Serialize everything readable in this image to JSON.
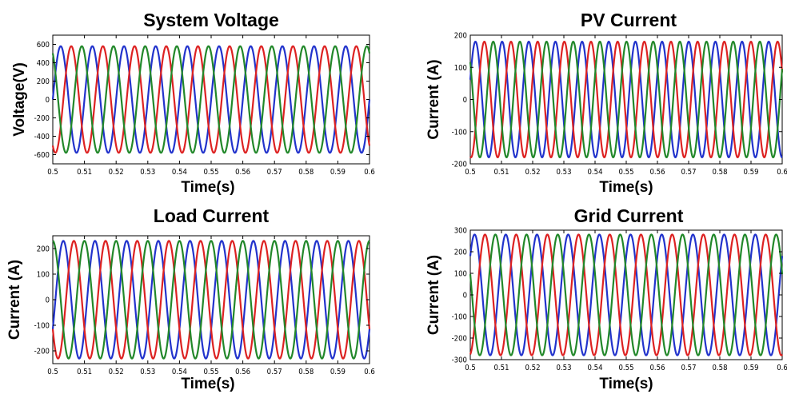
{
  "chart_data": [
    {
      "type": "line",
      "title": "System Voltage",
      "xlabel": "Time(s)",
      "ylabel": "Voltage(V)",
      "xlim": [
        0.5,
        0.6
      ],
      "ylim": [
        -700,
        700
      ],
      "xticks": [
        "0.5",
        "0.51",
        "0.52",
        "0.53",
        "0.54",
        "0.55",
        "0.56",
        "0.57",
        "0.58",
        "0.59",
        "0.6"
      ],
      "yticks": [
        "600",
        "400",
        "200",
        "0",
        "-200",
        "-400",
        "-600"
      ],
      "waveform": "three-phase sinusoid",
      "frequency_hz": 100,
      "series": [
        {
          "color": "#2233cc",
          "amplitude": 580,
          "phase_deg": 0
        },
        {
          "color": "#dd2222",
          "amplitude": 580,
          "phase_deg": 240
        },
        {
          "color": "#22882a",
          "amplitude": 580,
          "phase_deg": 120
        }
      ]
    },
    {
      "type": "line",
      "title": "PV Current",
      "xlabel": "Time(s)",
      "ylabel": "Current (A)",
      "xlim": [
        0.5,
        0.6
      ],
      "ylim": [
        -200,
        200
      ],
      "xticks": [
        "0.5",
        "0.51",
        "0.52",
        "0.53",
        "0.54",
        "0.55",
        "0.56",
        "0.57",
        "0.58",
        "0.59",
        "0.6"
      ],
      "yticks": [
        "200",
        "100",
        "0",
        "-100",
        "-200"
      ],
      "waveform": "three-phase sinusoid",
      "frequency_hz": 117,
      "series": [
        {
          "color": "#2233cc",
          "amplitude": 180,
          "phase_deg": 20
        },
        {
          "color": "#dd2222",
          "amplitude": 180,
          "phase_deg": 260
        },
        {
          "color": "#22882a",
          "amplitude": 180,
          "phase_deg": 140
        }
      ]
    },
    {
      "type": "line",
      "title": "Load Current",
      "xlabel": "Time(s)",
      "ylabel": "Current (A)",
      "xlim": [
        0.5,
        0.6
      ],
      "ylim": [
        -250,
        250
      ],
      "xticks": [
        "0.5",
        "0.51",
        "0.52",
        "0.53",
        "0.54",
        "0.55",
        "0.56",
        "0.57",
        "0.58",
        "0.59",
        "0.6"
      ],
      "yticks": [
        "200",
        "100",
        "0",
        "-100",
        "-200"
      ],
      "waveform": "three-phase sinusoid",
      "frequency_hz": 100,
      "series": [
        {
          "color": "#2233cc",
          "amplitude": 230,
          "phase_deg": -30
        },
        {
          "color": "#dd2222",
          "amplitude": 230,
          "phase_deg": 210
        },
        {
          "color": "#22882a",
          "amplitude": 230,
          "phase_deg": 90
        }
      ]
    },
    {
      "type": "line",
      "title": "Grid Current",
      "xlabel": "Time(s)",
      "ylabel": "Current (A)",
      "xlim": [
        0.5,
        0.6
      ],
      "ylim": [
        -300,
        300
      ],
      "xticks": [
        "0.5",
        "0.51",
        "0.52",
        "0.53",
        "0.54",
        "0.55",
        "0.56",
        "0.57",
        "0.58",
        "0.59",
        "0.6"
      ],
      "yticks": [
        "300",
        "200",
        "100",
        "0",
        "-100",
        "-200",
        "-300"
      ],
      "waveform": "three-phase sinusoid",
      "frequency_hz": 100,
      "series": [
        {
          "color": "#2233cc",
          "amplitude": 280,
          "phase_deg": 40
        },
        {
          "color": "#dd2222",
          "amplitude": 280,
          "phase_deg": 280
        },
        {
          "color": "#22882a",
          "amplitude": 280,
          "phase_deg": 160
        }
      ]
    }
  ]
}
